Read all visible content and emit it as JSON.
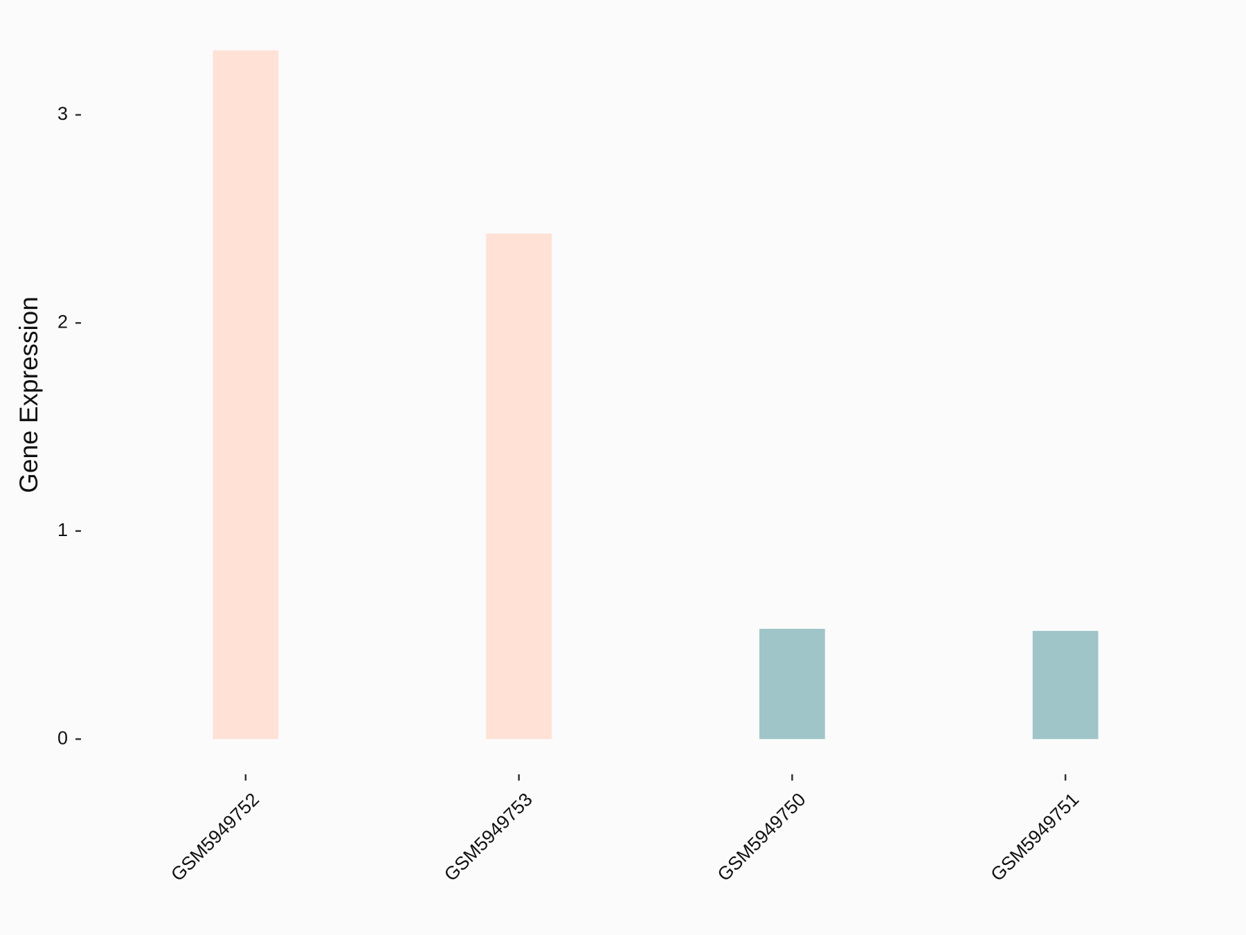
{
  "chart_data": {
    "type": "bar",
    "y_label": "Gene Expression",
    "categories": [
      "GSM5949752",
      "GSM5949753",
      "GSM5949750",
      "GSM5949751"
    ],
    "values": [
      3.31,
      2.43,
      0.53,
      0.52
    ],
    "colors": [
      "#ffe1d6",
      "#ffe1d6",
      "#9fc5c8",
      "#9fc5c8"
    ],
    "ylim": [
      -0.166,
      3.479
    ],
    "yticks": [
      0,
      1,
      2,
      3
    ]
  }
}
